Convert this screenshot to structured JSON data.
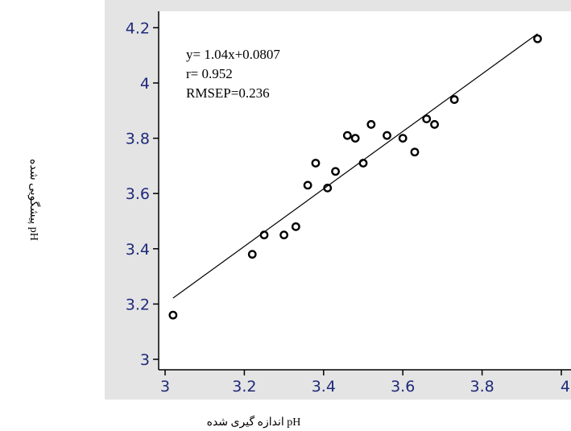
{
  "chart_data": {
    "type": "scatter",
    "title": "",
    "xlabel": "pH اندازه گیری شده",
    "ylabel": "pH پیشگویی شده",
    "xlim": [
      3.0,
      4.0
    ],
    "ylim": [
      3.0,
      4.2
    ],
    "x_ticks": [
      "3",
      "3.2",
      "3.4",
      "3.6",
      "3.8",
      "4"
    ],
    "y_ticks": [
      "3",
      "3.2",
      "3.4",
      "3.6",
      "3.8",
      "4",
      "4.2"
    ],
    "grid": false,
    "legend": "none",
    "series": [
      {
        "points": [
          {
            "x": 3.02,
            "y": 3.16
          },
          {
            "x": 3.22,
            "y": 3.38
          },
          {
            "x": 3.25,
            "y": 3.45
          },
          {
            "x": 3.3,
            "y": 3.45
          },
          {
            "x": 3.33,
            "y": 3.48
          },
          {
            "x": 3.36,
            "y": 3.63
          },
          {
            "x": 3.38,
            "y": 3.71
          },
          {
            "x": 3.41,
            "y": 3.62
          },
          {
            "x": 3.43,
            "y": 3.68
          },
          {
            "x": 3.46,
            "y": 3.81
          },
          {
            "x": 3.48,
            "y": 3.8
          },
          {
            "x": 3.5,
            "y": 3.71
          },
          {
            "x": 3.52,
            "y": 3.85
          },
          {
            "x": 3.56,
            "y": 3.81
          },
          {
            "x": 3.6,
            "y": 3.8
          },
          {
            "x": 3.63,
            "y": 3.75
          },
          {
            "x": 3.66,
            "y": 3.87
          },
          {
            "x": 3.68,
            "y": 3.85
          },
          {
            "x": 3.73,
            "y": 3.94
          },
          {
            "x": 3.94,
            "y": 4.16
          }
        ]
      }
    ],
    "fit_line": {
      "slope": 1.04,
      "intercept": 0.0807,
      "x_range": [
        3.02,
        3.94
      ]
    },
    "annotations": [
      "y= 1.04x+0.0807",
      "r= 0.952",
      "RMSEP=0.236"
    ],
    "colors": {
      "frame": "#e4e4e4",
      "plot_area": "#ffffff",
      "tick_label": "#1e2a7a",
      "marker": "#000000",
      "line": "#000000"
    }
  }
}
